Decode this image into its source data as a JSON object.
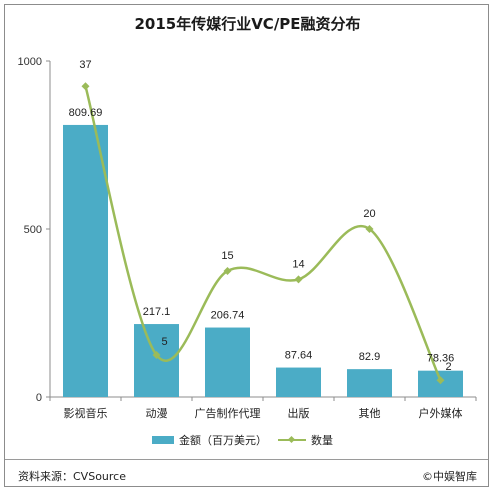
{
  "chart_data": {
    "type": "bar",
    "title": "2015年传媒行业VC/PE融资分布",
    "categories": [
      "影视音乐",
      "动漫",
      "广告制作代理",
      "出版",
      "其他",
      "户外媒体"
    ],
    "series": [
      {
        "name": "金额（百万美元）",
        "type": "bar",
        "values": [
          809.69,
          217.1,
          206.74,
          87.64,
          82.9,
          78.36
        ],
        "labels": [
          "809.69",
          "217.1",
          "206.74",
          "87.64",
          "82.9",
          "78.36"
        ],
        "color": "#4bacc6"
      },
      {
        "name": "数量",
        "type": "line",
        "smooth": true,
        "marker": "diamond",
        "values": [
          37,
          5,
          15,
          14,
          20,
          2
        ],
        "labels": [
          "37",
          "5",
          "15",
          "14",
          "20",
          "2"
        ],
        "color": "#9bbb59"
      }
    ],
    "y_axis": {
      "ticks": [
        "0",
        "500",
        "1000"
      ],
      "ylim": [
        0,
        1000
      ]
    },
    "y_axis_secondary": {
      "ylim": [
        0,
        40
      ],
      "shown": false
    },
    "grid": false,
    "legend_position": "bottom"
  },
  "footer": {
    "source": "资料来源：CVSource",
    "brand": "©中娱智库"
  }
}
